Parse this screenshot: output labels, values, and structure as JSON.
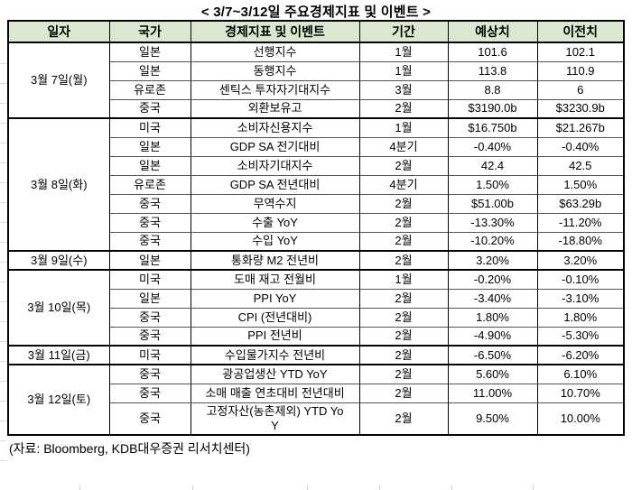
{
  "title": "< 3/7~3/12일 주요경제지표 및 이벤트 >",
  "columns": [
    "일자",
    "국가",
    "경제지표 및 이벤트",
    "기간",
    "예상치",
    "이전치"
  ],
  "groups": [
    {
      "date": "3월 7일(월)",
      "rows": [
        [
          "일본",
          "선행지수",
          "1월",
          "101.6",
          "102.1"
        ],
        [
          "일본",
          "동행지수",
          "1월",
          "113.8",
          "110.9"
        ],
        [
          "유로존",
          "센틱스 투자자기대지수",
          "3월",
          "8.8",
          "6"
        ],
        [
          "중국",
          "외환보유고",
          "2월",
          "$3190.0b",
          "$3230.9b"
        ]
      ]
    },
    {
      "date": "3월 8일(화)",
      "rows": [
        [
          "미국",
          "소비자신용지수",
          "1월",
          "$16.750b",
          "$21.267b"
        ],
        [
          "일본",
          "GDP SA 전기대비",
          "4분기",
          "-0.40%",
          "-0.40%"
        ],
        [
          "일본",
          "소비자기대지수",
          "2월",
          "42.4",
          "42.5"
        ],
        [
          "유로존",
          "GDP SA 전년대비",
          "4분기",
          "1.50%",
          "1.50%"
        ],
        [
          "중국",
          "무역수지",
          "2월",
          "$51.00b",
          "$63.29b"
        ],
        [
          "중국",
          "수출 YoY",
          "2월",
          "-13.30%",
          "-11.20%"
        ],
        [
          "중국",
          "수입 YoY",
          "2월",
          "-10.20%",
          "-18.80%"
        ]
      ]
    },
    {
      "date": "3월 9일(수)",
      "rows": [
        [
          "일본",
          "통화량 M2 전년비",
          "2월",
          "3.20%",
          "3.20%"
        ]
      ]
    },
    {
      "date": "3월 10일(목)",
      "rows": [
        [
          "미국",
          "도매 재고 전월비",
          "1월",
          "-0.20%",
          "-0.10%"
        ],
        [
          "일본",
          "PPI YoY",
          "2월",
          "-3.40%",
          "-3.10%"
        ],
        [
          "중국",
          "CPI (전년대비)",
          "2월",
          "1.80%",
          "1.80%"
        ],
        [
          "중국",
          "PPI 전년비",
          "2월",
          "-4.90%",
          "-5.30%"
        ]
      ]
    },
    {
      "date": "3월 11일(금)",
      "rows": [
        [
          "미국",
          "수입물가지수 전년비",
          "2월",
          "-6.50%",
          "-6.20%"
        ]
      ]
    },
    {
      "date": "3월 12일(토)",
      "rows": [
        [
          "중국",
          "광공업생산 YTD YoY",
          "2월",
          "5.60%",
          "6.10%"
        ],
        [
          "중국",
          "소매 매출 연초대비 전년대비",
          "2월",
          "11.00%",
          "10.70%"
        ],
        [
          "중국",
          "고정자산(농촌제외) YTD YoY",
          "2월",
          "9.50%",
          "10.00%"
        ]
      ]
    }
  ],
  "footer": "(자료: Bloomberg, KDB대우증권 리서치센터)",
  "colors": {
    "header_bg": "#dae8d0",
    "border": "#000000",
    "inner_line": "#555555",
    "stub_line": "#cfcfcf"
  }
}
